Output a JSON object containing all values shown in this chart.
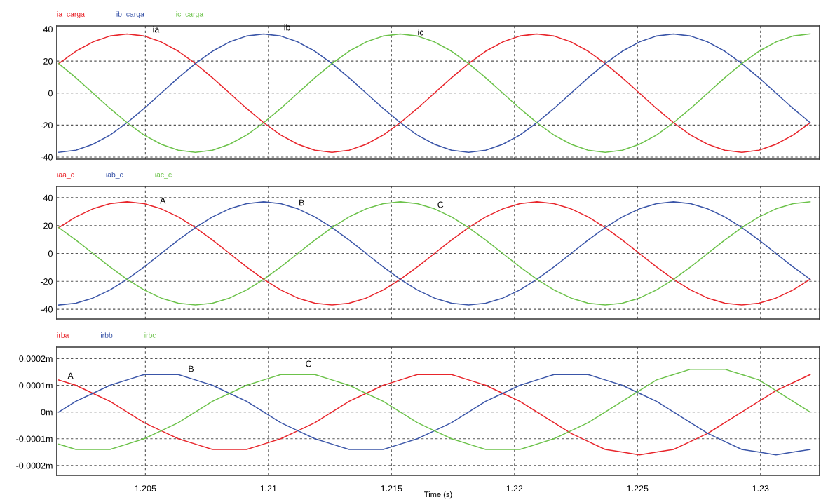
{
  "chart_data": [
    {
      "type": "line",
      "xlim": [
        1.2014,
        1.2324
      ],
      "xticks": [
        1.205,
        1.21,
        1.215,
        1.22,
        1.225,
        1.23
      ],
      "ylim": [
        -41.3,
        42
      ],
      "yticks": [
        -40,
        -20,
        0,
        20,
        40
      ],
      "tick_labels": "y",
      "grid": true,
      "legend": "top left",
      "marker": "none",
      "line_style": "solid",
      "x": [
        1.20148,
        1.202174,
        1.202868,
        1.203562,
        1.204256,
        1.20495,
        1.205644,
        1.206338,
        1.207032,
        1.207726,
        1.20842,
        1.209114,
        1.209808,
        1.210502,
        1.211196,
        1.21189,
        1.212584,
        1.213278,
        1.213972,
        1.214666,
        1.21536,
        1.216054,
        1.216748,
        1.217442,
        1.218136,
        1.21883,
        1.219524,
        1.220218,
        1.220912,
        1.221606,
        1.2223,
        1.222994,
        1.223688,
        1.224382,
        1.225076,
        1.22577,
        1.226464,
        1.227158,
        1.227852,
        1.228546,
        1.22924,
        1.229934,
        1.230628,
        1.231322,
        1.232016
      ],
      "series": [
        {
          "name": "ia_carga",
          "color": "#e8252b",
          "values": [
            18.5,
            26.2,
            32.0,
            35.7,
            37,
            35.7,
            32.0,
            26.2,
            18.5,
            9.6,
            0,
            -9.6,
            -18.5,
            -26.2,
            -32.0,
            -35.7,
            -37,
            -35.7,
            -32.0,
            -26.2,
            -18.5,
            -9.6,
            0,
            9.6,
            18.5,
            26.2,
            32.0,
            35.7,
            37,
            35.7,
            32.0,
            26.2,
            18.5,
            9.6,
            0,
            -9.6,
            -18.5,
            -26.2,
            -32.0,
            -35.7,
            -37,
            -35.7,
            -32.0,
            -26.2,
            -18.5
          ]
        },
        {
          "name": "ib_carga",
          "color": "#3a55a8",
          "values": [
            -37,
            -35.7,
            -32.0,
            -26.2,
            -18.5,
            -9.6,
            0,
            9.6,
            18.5,
            26.2,
            32.0,
            35.7,
            37,
            35.7,
            32.0,
            26.2,
            18.5,
            9.6,
            0,
            -9.6,
            -18.5,
            -26.2,
            -32.0,
            -35.7,
            -37,
            -35.7,
            -32.0,
            -26.2,
            -18.5,
            -9.6,
            0,
            9.6,
            18.5,
            26.2,
            32.0,
            35.7,
            37,
            35.7,
            32.0,
            26.2,
            18.5,
            9.6,
            0,
            -9.6,
            -18.5
          ]
        },
        {
          "name": "ic_carga",
          "color": "#6cc24a",
          "values": [
            18.5,
            9.6,
            0,
            -9.6,
            -18.5,
            -26.2,
            -32.0,
            -35.7,
            -37,
            -35.7,
            -32.0,
            -26.2,
            -18.5,
            -9.6,
            0,
            9.6,
            18.5,
            26.2,
            32.0,
            35.7,
            37,
            35.7,
            32.0,
            26.2,
            18.5,
            9.6,
            0,
            -9.6,
            -18.5,
            -26.2,
            -32.0,
            -35.7,
            -37,
            -35.7,
            -32.0,
            -26.2,
            -18.5,
            -9.6,
            0,
            9.6,
            18.5,
            26.2,
            32.0,
            35.7,
            37
          ]
        }
      ],
      "annotations": [
        "ia",
        "ib",
        "ic"
      ]
    },
    {
      "type": "line",
      "xlim": [
        1.2014,
        1.2324
      ],
      "xticks": [
        1.205,
        1.21,
        1.215,
        1.22,
        1.225,
        1.23
      ],
      "ylim": [
        -47,
        48
      ],
      "yticks": [
        -40,
        -20,
        0,
        20,
        40
      ],
      "tick_labels": "y",
      "grid": true,
      "legend": "top left",
      "marker": "none",
      "line_style": "solid",
      "x": [
        1.20148,
        1.202174,
        1.202868,
        1.203562,
        1.204256,
        1.20495,
        1.205644,
        1.206338,
        1.207032,
        1.207726,
        1.20842,
        1.209114,
        1.209808,
        1.210502,
        1.211196,
        1.21189,
        1.212584,
        1.213278,
        1.213972,
        1.214666,
        1.21536,
        1.216054,
        1.216748,
        1.217442,
        1.218136,
        1.21883,
        1.219524,
        1.220218,
        1.220912,
        1.221606,
        1.2223,
        1.222994,
        1.223688,
        1.224382,
        1.225076,
        1.22577,
        1.226464,
        1.227158,
        1.227852,
        1.228546,
        1.22924,
        1.229934,
        1.230628,
        1.231322,
        1.232016
      ],
      "series": [
        {
          "name": "iaa_c",
          "color": "#e8252b",
          "values": [
            18.5,
            26.2,
            32.0,
            35.7,
            37,
            35.7,
            32.0,
            26.2,
            18.5,
            9.6,
            0,
            -9.6,
            -18.5,
            -26.2,
            -32.0,
            -35.7,
            -37,
            -35.7,
            -32.0,
            -26.2,
            -18.5,
            -9.6,
            0,
            9.6,
            18.5,
            26.2,
            32.0,
            35.7,
            37,
            35.7,
            32.0,
            26.2,
            18.5,
            9.6,
            0,
            -9.6,
            -18.5,
            -26.2,
            -32.0,
            -35.7,
            -37,
            -35.7,
            -32.0,
            -26.2,
            -18.5
          ]
        },
        {
          "name": "iab_c",
          "color": "#3a55a8",
          "values": [
            -37,
            -35.7,
            -32.0,
            -26.2,
            -18.5,
            -9.6,
            0,
            9.6,
            18.5,
            26.2,
            32.0,
            35.7,
            37,
            35.7,
            32.0,
            26.2,
            18.5,
            9.6,
            0,
            -9.6,
            -18.5,
            -26.2,
            -32.0,
            -35.7,
            -37,
            -35.7,
            -32.0,
            -26.2,
            -18.5,
            -9.6,
            0,
            9.6,
            18.5,
            26.2,
            32.0,
            35.7,
            37,
            35.7,
            32.0,
            26.2,
            18.5,
            9.6,
            0,
            -9.6,
            -18.5
          ]
        },
        {
          "name": "iac_c",
          "color": "#6cc24a",
          "values": [
            18.5,
            9.6,
            0,
            -9.6,
            -18.5,
            -26.2,
            -32.0,
            -35.7,
            -37,
            -35.7,
            -32.0,
            -26.2,
            -18.5,
            -9.6,
            0,
            9.6,
            18.5,
            26.2,
            32.0,
            35.7,
            37,
            35.7,
            32.0,
            26.2,
            18.5,
            9.6,
            0,
            -9.6,
            -18.5,
            -26.2,
            -32.0,
            -35.7,
            -37,
            -35.7,
            -32.0,
            -26.2,
            -18.5,
            -9.6,
            0,
            9.6,
            18.5,
            26.2,
            32.0,
            35.7,
            37
          ]
        }
      ],
      "annotations": [
        "A",
        "B",
        "C"
      ]
    },
    {
      "type": "line",
      "xlim": [
        1.2014,
        1.2324
      ],
      "xticks": [
        1.205,
        1.21,
        1.215,
        1.22,
        1.225,
        1.23
      ],
      "ylim": [
        -0.000237,
        0.000243
      ],
      "yticks": [
        {
          "value": -0.0002,
          "label": "-0.0002m"
        },
        {
          "value": -0.0001,
          "label": "-0.0001m"
        },
        {
          "value": 0,
          "label": "0m"
        },
        {
          "value": 0.0001,
          "label": "0.0001m"
        },
        {
          "value": 0.0002,
          "label": "0.0002m"
        }
      ],
      "xlabel": "Time (s)",
      "grid": true,
      "legend": "top left",
      "marker": "none",
      "line_style": "solid",
      "x": [
        1.20148,
        1.202174,
        1.202868,
        1.203562,
        1.204256,
        1.20495,
        1.205644,
        1.206338,
        1.207032,
        1.207726,
        1.20842,
        1.209114,
        1.209808,
        1.210502,
        1.211196,
        1.21189,
        1.212584,
        1.213278,
        1.213972,
        1.214666,
        1.21536,
        1.216054,
        1.216748,
        1.217442,
        1.218136,
        1.21883,
        1.219524,
        1.220218,
        1.220912,
        1.221606,
        1.2223,
        1.222994,
        1.223688,
        1.224382,
        1.225076,
        1.22577,
        1.226464,
        1.227158,
        1.227852,
        1.228546,
        1.22924,
        1.229934,
        1.230628,
        1.231322,
        1.232016
      ],
      "series": [
        {
          "name": "irba",
          "color": "#e8252b",
          "values": [
            0.00012,
            0.0001,
            7e-05,
            4e-05,
            0,
            -4e-05,
            -7e-05,
            -0.0001,
            -0.00012,
            -0.00014,
            -0.00014,
            -0.00014,
            -0.00012,
            -0.0001,
            -7e-05,
            -4e-05,
            0,
            4e-05,
            7e-05,
            0.0001,
            0.00012,
            0.00014,
            0.00014,
            0.00014,
            0.00012,
            0.0001,
            7e-05,
            4e-05,
            0,
            -4e-05,
            -8e-05,
            -0.00011,
            -0.00014,
            -0.00015,
            -0.00016,
            -0.00015,
            -0.00014,
            -0.00011,
            -8e-05,
            -4e-05,
            0,
            4e-05,
            8e-05,
            0.00011,
            0.00014
          ]
        },
        {
          "name": "irbb",
          "color": "#3a55a8",
          "values": [
            0,
            4e-05,
            7e-05,
            0.0001,
            0.00012,
            0.00014,
            0.00014,
            0.00014,
            0.00012,
            0.0001,
            7e-05,
            4e-05,
            0,
            -4e-05,
            -7e-05,
            -0.0001,
            -0.00012,
            -0.00014,
            -0.00014,
            -0.00014,
            -0.00012,
            -0.0001,
            -7e-05,
            -4e-05,
            0,
            4e-05,
            7e-05,
            0.0001,
            0.00012,
            0.00014,
            0.00014,
            0.00014,
            0.00012,
            0.0001,
            7e-05,
            4e-05,
            0,
            -4e-05,
            -8e-05,
            -0.00011,
            -0.00014,
            -0.00015,
            -0.00016,
            -0.00015,
            -0.00014
          ]
        },
        {
          "name": "irbc",
          "color": "#6cc24a",
          "values": [
            -0.00012,
            -0.00014,
            -0.00014,
            -0.00014,
            -0.00012,
            -0.0001,
            -7e-05,
            -4e-05,
            0,
            4e-05,
            7e-05,
            0.0001,
            0.00012,
            0.00014,
            0.00014,
            0.00014,
            0.00012,
            0.0001,
            7e-05,
            4e-05,
            0,
            -4e-05,
            -7e-05,
            -0.0001,
            -0.00012,
            -0.00014,
            -0.00014,
            -0.00014,
            -0.00012,
            -0.0001,
            -7e-05,
            -4e-05,
            0,
            4e-05,
            8e-05,
            0.00012,
            0.00014,
            0.00016,
            0.00016,
            0.00016,
            0.00014,
            0.00012,
            8e-05,
            4e-05,
            0
          ]
        }
      ],
      "annotations": [
        "A",
        "B",
        "C"
      ]
    }
  ]
}
